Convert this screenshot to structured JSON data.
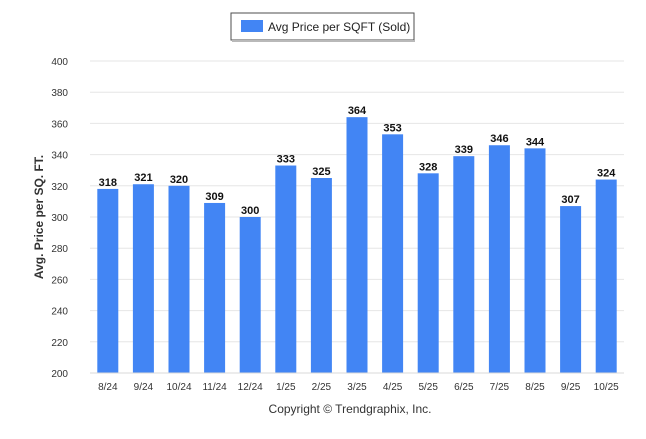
{
  "chart_data": {
    "type": "bar",
    "categories": [
      "8/24",
      "9/24",
      "10/24",
      "11/24",
      "12/24",
      "1/25",
      "2/25",
      "3/25",
      "4/25",
      "5/25",
      "6/25",
      "7/25",
      "8/25",
      "9/25",
      "10/25"
    ],
    "series": [
      {
        "name": "Avg Price per SQFT (Sold)",
        "values": [
          318,
          321,
          320,
          309,
          300,
          333,
          325,
          364,
          353,
          328,
          339,
          346,
          344,
          307,
          324
        ],
        "color": "#4285f4"
      }
    ],
    "ylabel": "Avg. Price per SQ. FT.",
    "xlabel": "",
    "ylim": [
      200,
      400
    ],
    "yticks": [
      200,
      220,
      240,
      260,
      280,
      300,
      320,
      340,
      360,
      380,
      400
    ],
    "grid": true,
    "legend_position": "top-center",
    "footer": "Copyright © Trendgraphix, Inc."
  }
}
